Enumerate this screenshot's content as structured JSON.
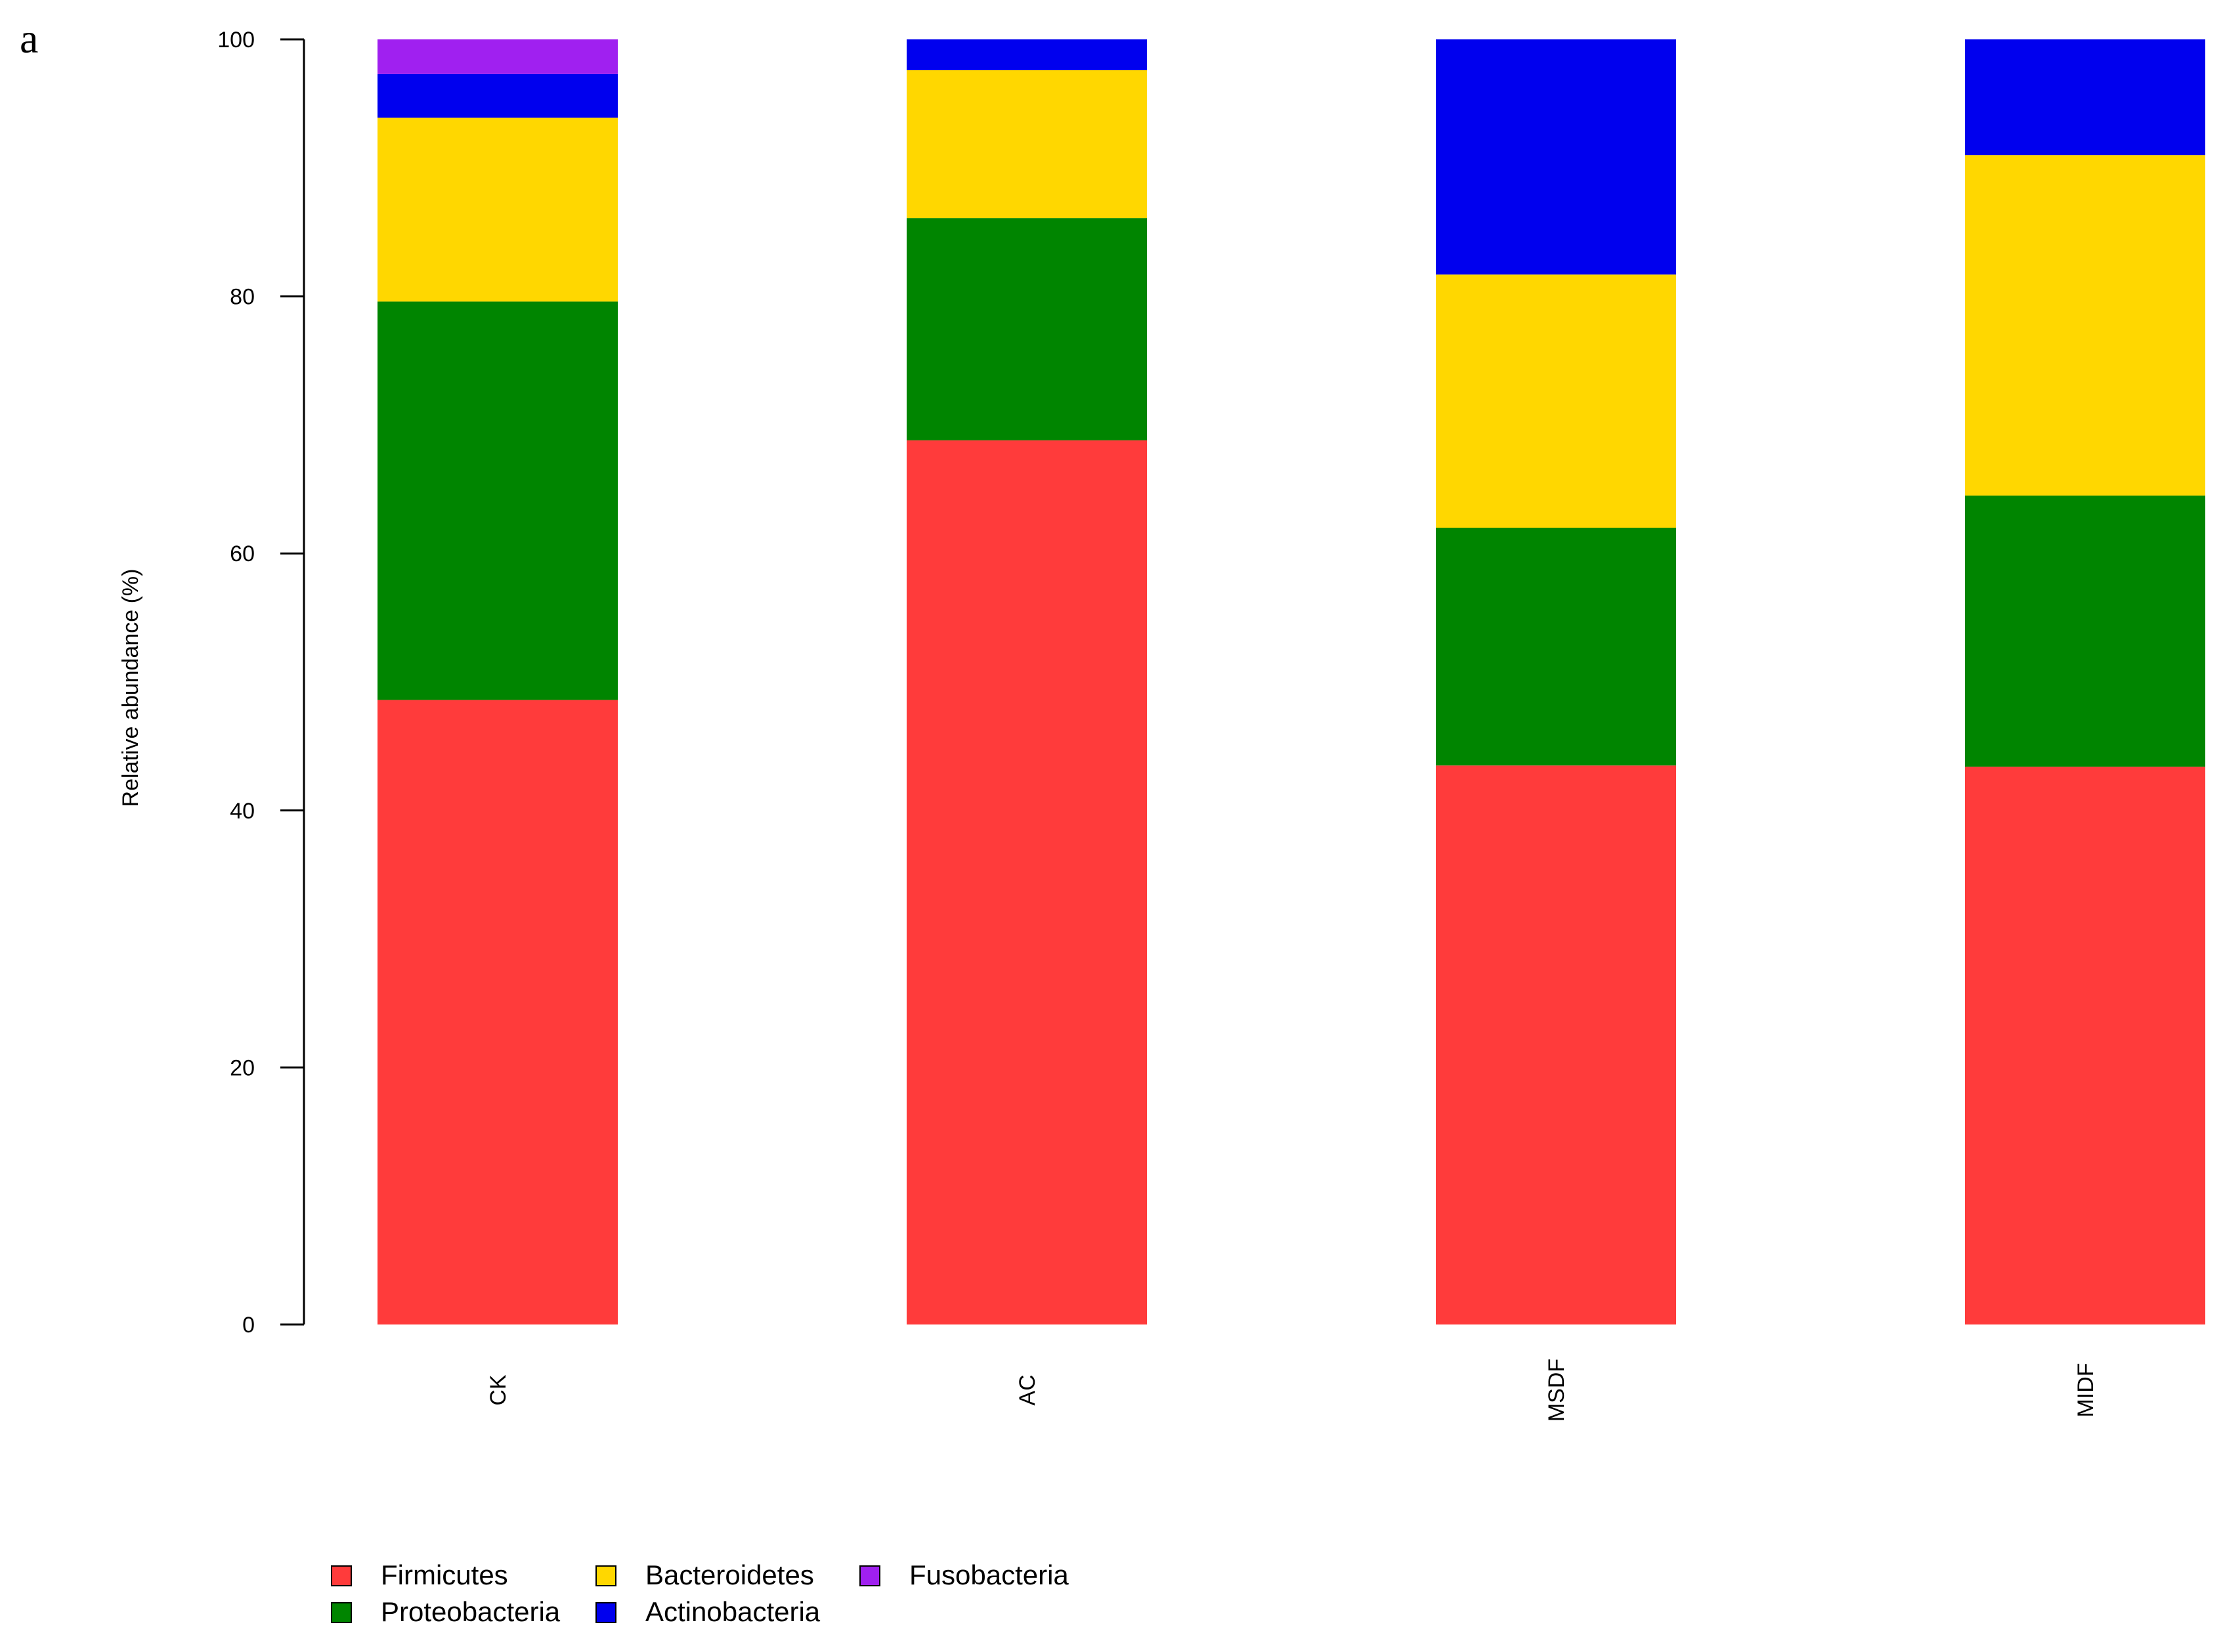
{
  "panel_label": "a",
  "colors": {
    "Firmicutes": "#ff3b3b",
    "Proteobacteria": "#008500",
    "Bacteroidetes": "#ffd700",
    "Actinobacteria": "#0000ee",
    "Fusobacteria": "#a020f0"
  },
  "chart_data": {
    "type": "bar",
    "stacked": true,
    "ylabel": "Relative abundance (%)",
    "xlabel": "",
    "ylim": [
      0,
      100
    ],
    "yticks": [
      0,
      20,
      40,
      60,
      80,
      100
    ],
    "categories": [
      "CK",
      "AC",
      "MSDF",
      "MIDF"
    ],
    "series": [
      {
        "name": "Firmicutes",
        "values": [
          48.6,
          68.8,
          43.5,
          43.4
        ]
      },
      {
        "name": "Proteobacteria",
        "values": [
          31.0,
          17.3,
          18.5,
          21.1
        ]
      },
      {
        "name": "Bacteroidetes",
        "values": [
          14.3,
          11.5,
          19.7,
          26.5
        ]
      },
      {
        "name": "Actinobacteria",
        "values": [
          3.4,
          2.4,
          18.3,
          9.0
        ]
      },
      {
        "name": "Fusobacteria",
        "values": [
          2.7,
          0,
          0,
          0
        ]
      }
    ],
    "legend_position": "bottom-left",
    "grid": false
  }
}
